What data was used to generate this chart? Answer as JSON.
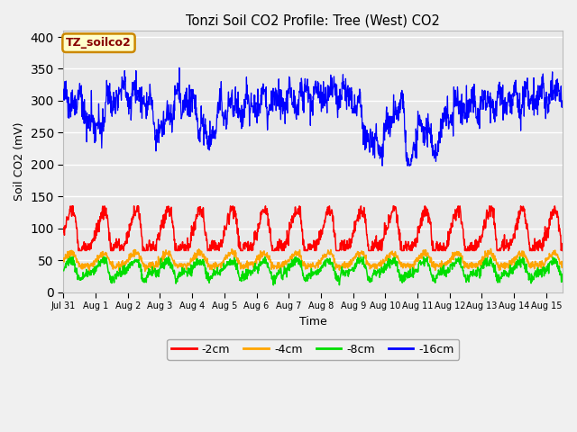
{
  "title": "Tonzi Soil CO2 Profile: Tree (West) CO2",
  "ylabel": "Soil CO2 (mV)",
  "xlabel": "Time",
  "ylim": [
    0,
    410
  ],
  "yticks": [
    0,
    50,
    100,
    150,
    200,
    250,
    300,
    350,
    400
  ],
  "line_colors": {
    "-2cm": "#ff0000",
    "-4cm": "#ffa500",
    "-8cm": "#00dd00",
    "-16cm": "#0000ff"
  },
  "legend_label": "TZ_soilco2",
  "legend_bg": "#ffffcc",
  "legend_border": "#cc8800",
  "plot_bg": "#e8e8e8",
  "fig_bg": "#f0f0f0",
  "xtick_labels": [
    "Jul 31",
    "Aug 1",
    "Aug 2",
    "Aug 3",
    "Aug 4",
    "Aug 5",
    "Aug 6",
    "Aug 7",
    "Aug 8",
    "Aug 9",
    "Aug 10",
    "Aug 11",
    "Aug 12",
    "Aug 13",
    "Aug 14",
    "Aug 15"
  ],
  "n_points": 1500,
  "seed": 7
}
